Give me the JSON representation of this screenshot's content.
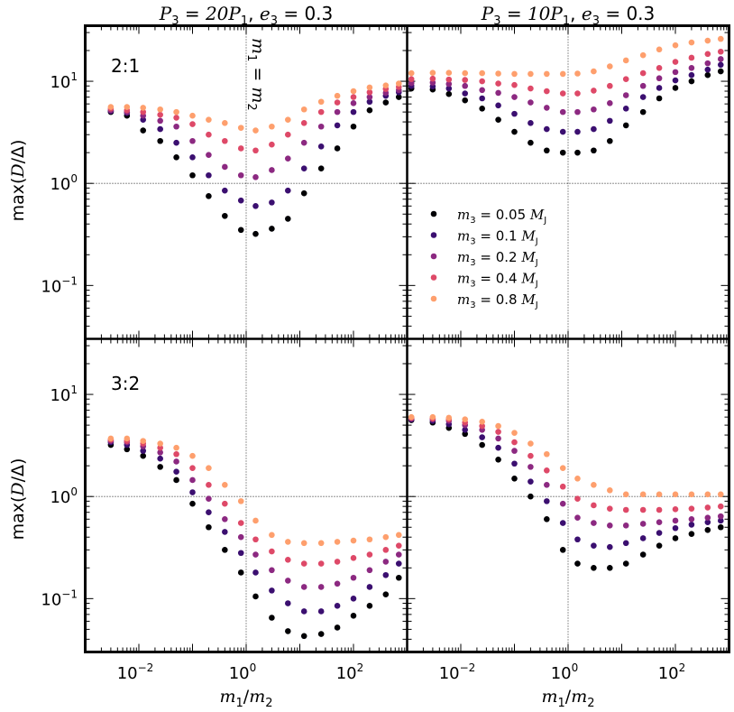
{
  "colors": {
    "m3_0.05": "#000004",
    "m3_0.1": "#3b0f70",
    "m3_0.2": "#8c2981",
    "m3_0.4": "#de4968",
    "m3_0.8": "#fe9f6d"
  },
  "column_titles": [
    {
      "p_lhs": "P",
      "p_sub": "3",
      "p_coef": "20P",
      "p_sub2": "1",
      "e_lhs": "e",
      "e_sub": "3",
      "e_val": " = 0.3"
    },
    {
      "p_lhs": "P",
      "p_sub": "3",
      "p_coef": "10P",
      "p_sub2": "1",
      "e_lhs": "e",
      "e_sub": "3",
      "e_val": " = 0.3"
    }
  ],
  "ylabel": {
    "pre": "max(",
    "script": "D",
    "post": "/Δ)"
  },
  "xlabel": {
    "num": "m",
    "num_sub": "1",
    "slash": "/",
    "den": "m",
    "den_sub": "2"
  },
  "x_ticks": [
    {
      "base": "10",
      "exp": "−2"
    },
    {
      "base": "10",
      "exp": "0"
    },
    {
      "base": "10",
      "exp": "2"
    }
  ],
  "y_ticks": [
    {
      "base": "10",
      "exp": "1"
    },
    {
      "base": "10",
      "exp": "0"
    },
    {
      "base": "10",
      "exp": "−1"
    }
  ],
  "annotation_m1_eq_m2": {
    "a": "m",
    "a_sub": "1",
    "eq": " = ",
    "b": "m",
    "b_sub": "2"
  },
  "legend": [
    {
      "pre": "m",
      "sub": "3",
      "val": " = 0.05 ",
      "unit": "M",
      "unit_sub": "J"
    },
    {
      "pre": "m",
      "sub": "3",
      "val": " = 0.1 ",
      "unit": "M",
      "unit_sub": "J"
    },
    {
      "pre": "m",
      "sub": "3",
      "val": " = 0.2 ",
      "unit": "M",
      "unit_sub": "J"
    },
    {
      "pre": "m",
      "sub": "3",
      "val": " = 0.4 ",
      "unit": "M",
      "unit_sub": "J"
    },
    {
      "pre": "m",
      "sub": "3",
      "val": " = 0.8 ",
      "unit": "M",
      "unit_sub": "J"
    }
  ],
  "chart_data": [
    {
      "type": "scatter",
      "panel": "top-left",
      "resonance_label": "2:1",
      "x_scale": "log",
      "y_scale": "log",
      "xlim": [
        0.001,
        1000
      ],
      "ylim": [
        0.03,
        35
      ],
      "x": [
        0.003,
        0.006,
        0.012,
        0.025,
        0.05,
        0.1,
        0.2,
        0.4,
        0.8,
        1.5,
        3,
        6,
        12,
        25,
        50,
        100,
        200,
        400,
        700
      ],
      "series": [
        {
          "name": "m3 = 0.05 MJ",
          "values": [
            5.0,
            4.6,
            3.3,
            2.6,
            1.8,
            1.2,
            0.75,
            0.48,
            0.35,
            0.32,
            0.36,
            0.45,
            0.8,
            1.4,
            2.2,
            3.6,
            5.2,
            6.2,
            7.0
          ]
        },
        {
          "name": "m3 = 0.1 MJ",
          "values": [
            5.1,
            4.9,
            4.2,
            3.4,
            2.5,
            1.8,
            1.2,
            0.85,
            0.68,
            0.6,
            0.65,
            0.85,
            1.4,
            2.3,
            3.7,
            5.0,
            6.3,
            7.2,
            7.8
          ]
        },
        {
          "name": "m3 = 0.2 MJ",
          "values": [
            5.2,
            5.0,
            4.6,
            4.1,
            3.6,
            2.6,
            1.9,
            1.45,
            1.2,
            1.15,
            1.35,
            1.75,
            2.5,
            3.6,
            5.0,
            6.1,
            7.0,
            7.7,
            8.2
          ]
        },
        {
          "name": "m3 = 0.4 MJ",
          "values": [
            5.4,
            5.2,
            5.0,
            4.7,
            4.4,
            3.8,
            3.0,
            2.6,
            2.2,
            2.1,
            2.4,
            3.0,
            3.9,
            5.0,
            6.2,
            7.0,
            7.8,
            8.4,
            8.8
          ]
        },
        {
          "name": "m3 = 0.8 MJ",
          "values": [
            5.6,
            5.6,
            5.5,
            5.3,
            5.0,
            4.6,
            4.2,
            3.9,
            3.5,
            3.3,
            3.6,
            4.2,
            5.3,
            6.3,
            7.2,
            8.0,
            8.7,
            9.1,
            9.5
          ]
        }
      ]
    },
    {
      "type": "scatter",
      "panel": "top-right",
      "resonance_label": "",
      "x_scale": "log",
      "y_scale": "log",
      "xlim": [
        0.001,
        1000
      ],
      "ylim": [
        0.03,
        35
      ],
      "x": [
        0.0012,
        0.003,
        0.006,
        0.012,
        0.025,
        0.05,
        0.1,
        0.2,
        0.4,
        0.8,
        1.5,
        3,
        6,
        12,
        25,
        50,
        100,
        200,
        400,
        700
      ],
      "series": [
        {
          "name": "m3 = 0.05 MJ",
          "values": [
            8.5,
            8.3,
            7.5,
            6.5,
            5.4,
            4.2,
            3.2,
            2.5,
            2.1,
            2.0,
            2.0,
            2.1,
            2.6,
            3.7,
            5.0,
            6.8,
            8.6,
            10.0,
            11.5,
            12.5
          ]
        },
        {
          "name": "m3 = 0.1 MJ",
          "values": [
            9.0,
            8.9,
            8.5,
            7.6,
            6.8,
            5.8,
            4.8,
            3.9,
            3.4,
            3.2,
            3.2,
            3.4,
            4.1,
            5.4,
            7.0,
            8.6,
            10.2,
            11.5,
            13.0,
            14.5
          ]
        },
        {
          "name": "m3 = 0.2 MJ",
          "values": [
            9.6,
            9.7,
            9.4,
            9.0,
            8.2,
            7.7,
            7.0,
            6.2,
            5.5,
            5.0,
            5.0,
            5.3,
            6.1,
            7.3,
            9.0,
            10.7,
            12.3,
            13.5,
            15.0,
            16.5
          ]
        },
        {
          "name": "m3 = 0.4 MJ",
          "values": [
            10.5,
            10.6,
            10.4,
            10.3,
            10.0,
            9.5,
            9.2,
            8.5,
            8.0,
            7.6,
            7.6,
            8.1,
            9.0,
            10.5,
            12.0,
            13.5,
            15.5,
            17.0,
            18.5,
            19.5
          ]
        },
        {
          "name": "m3 = 0.8 MJ",
          "values": [
            12.0,
            12.1,
            12.1,
            12.0,
            12.0,
            11.9,
            11.8,
            11.8,
            11.8,
            11.8,
            11.9,
            12.5,
            14.0,
            16.0,
            18.0,
            20.5,
            22.5,
            24.0,
            25.0,
            26.0
          ]
        }
      ]
    },
    {
      "type": "scatter",
      "panel": "bottom-left",
      "resonance_label": "3:2",
      "x_scale": "log",
      "y_scale": "log",
      "xlim": [
        0.001,
        1000
      ],
      "ylim": [
        0.03,
        35
      ],
      "x": [
        0.003,
        0.006,
        0.012,
        0.025,
        0.05,
        0.1,
        0.2,
        0.4,
        0.8,
        1.5,
        3,
        6,
        12,
        25,
        50,
        100,
        200,
        400,
        700
      ],
      "series": [
        {
          "name": "m3 = 0.05 MJ",
          "values": [
            3.2,
            2.9,
            2.5,
            1.95,
            1.45,
            0.85,
            0.5,
            0.3,
            0.18,
            0.105,
            0.065,
            0.048,
            0.043,
            0.045,
            0.052,
            0.068,
            0.085,
            0.11,
            0.16
          ]
        },
        {
          "name": "m3 = 0.1 MJ",
          "values": [
            3.4,
            3.2,
            2.8,
            2.35,
            1.75,
            1.1,
            0.7,
            0.45,
            0.28,
            0.18,
            0.12,
            0.09,
            0.075,
            0.075,
            0.085,
            0.1,
            0.13,
            0.17,
            0.22
          ]
        },
        {
          "name": "m3 = 0.2 MJ",
          "values": [
            3.5,
            3.4,
            3.1,
            2.7,
            2.2,
            1.45,
            0.95,
            0.6,
            0.4,
            0.27,
            0.19,
            0.15,
            0.13,
            0.13,
            0.14,
            0.16,
            0.19,
            0.23,
            0.27
          ]
        },
        {
          "name": "m3 = 0.4 MJ",
          "values": [
            3.6,
            3.5,
            3.3,
            3.0,
            2.6,
            1.9,
            1.3,
            0.85,
            0.55,
            0.38,
            0.29,
            0.24,
            0.22,
            0.22,
            0.23,
            0.25,
            0.27,
            0.3,
            0.33
          ]
        },
        {
          "name": "m3 = 0.8 MJ",
          "values": [
            3.7,
            3.7,
            3.5,
            3.3,
            3.0,
            2.5,
            1.9,
            1.3,
            0.9,
            0.58,
            0.42,
            0.36,
            0.35,
            0.35,
            0.36,
            0.37,
            0.38,
            0.4,
            0.42
          ]
        }
      ]
    },
    {
      "type": "scatter",
      "panel": "bottom-right",
      "resonance_label": "",
      "x_scale": "log",
      "y_scale": "log",
      "xlim": [
        0.001,
        1000
      ],
      "ylim": [
        0.03,
        35
      ],
      "x": [
        0.0012,
        0.003,
        0.006,
        0.012,
        0.025,
        0.05,
        0.1,
        0.2,
        0.4,
        0.8,
        1.5,
        3,
        6,
        12,
        25,
        50,
        100,
        200,
        400,
        700
      ],
      "series": [
        {
          "name": "m3 = 0.05 MJ",
          "values": [
            5.6,
            5.3,
            4.7,
            4.1,
            3.2,
            2.3,
            1.5,
            1.0,
            0.6,
            0.3,
            0.22,
            0.2,
            0.2,
            0.22,
            0.27,
            0.33,
            0.39,
            0.43,
            0.47,
            0.5
          ]
        },
        {
          "name": "m3 = 0.1 MJ",
          "values": [
            5.7,
            5.5,
            5.1,
            4.5,
            3.8,
            3.0,
            2.1,
            1.4,
            0.9,
            0.55,
            0.38,
            0.33,
            0.32,
            0.35,
            0.39,
            0.44,
            0.49,
            0.53,
            0.56,
            0.58
          ]
        },
        {
          "name": "m3 = 0.2 MJ",
          "values": [
            5.8,
            5.7,
            5.5,
            5.0,
            4.5,
            3.7,
            2.8,
            1.95,
            1.3,
            0.85,
            0.62,
            0.55,
            0.52,
            0.52,
            0.54,
            0.56,
            0.58,
            0.6,
            0.62,
            0.64
          ]
        },
        {
          "name": "m3 = 0.4 MJ",
          "values": [
            5.9,
            5.8,
            5.7,
            5.3,
            4.9,
            4.3,
            3.4,
            2.5,
            1.8,
            1.25,
            0.95,
            0.82,
            0.76,
            0.74,
            0.74,
            0.74,
            0.75,
            0.76,
            0.78,
            0.8
          ]
        },
        {
          "name": "m3 = 0.8 MJ",
          "values": [
            6.0,
            6.0,
            5.9,
            5.7,
            5.4,
            4.9,
            4.2,
            3.3,
            2.6,
            1.9,
            1.5,
            1.3,
            1.15,
            1.05,
            1.05,
            1.05,
            1.05,
            1.05,
            1.05,
            1.05
          ]
        }
      ]
    }
  ]
}
